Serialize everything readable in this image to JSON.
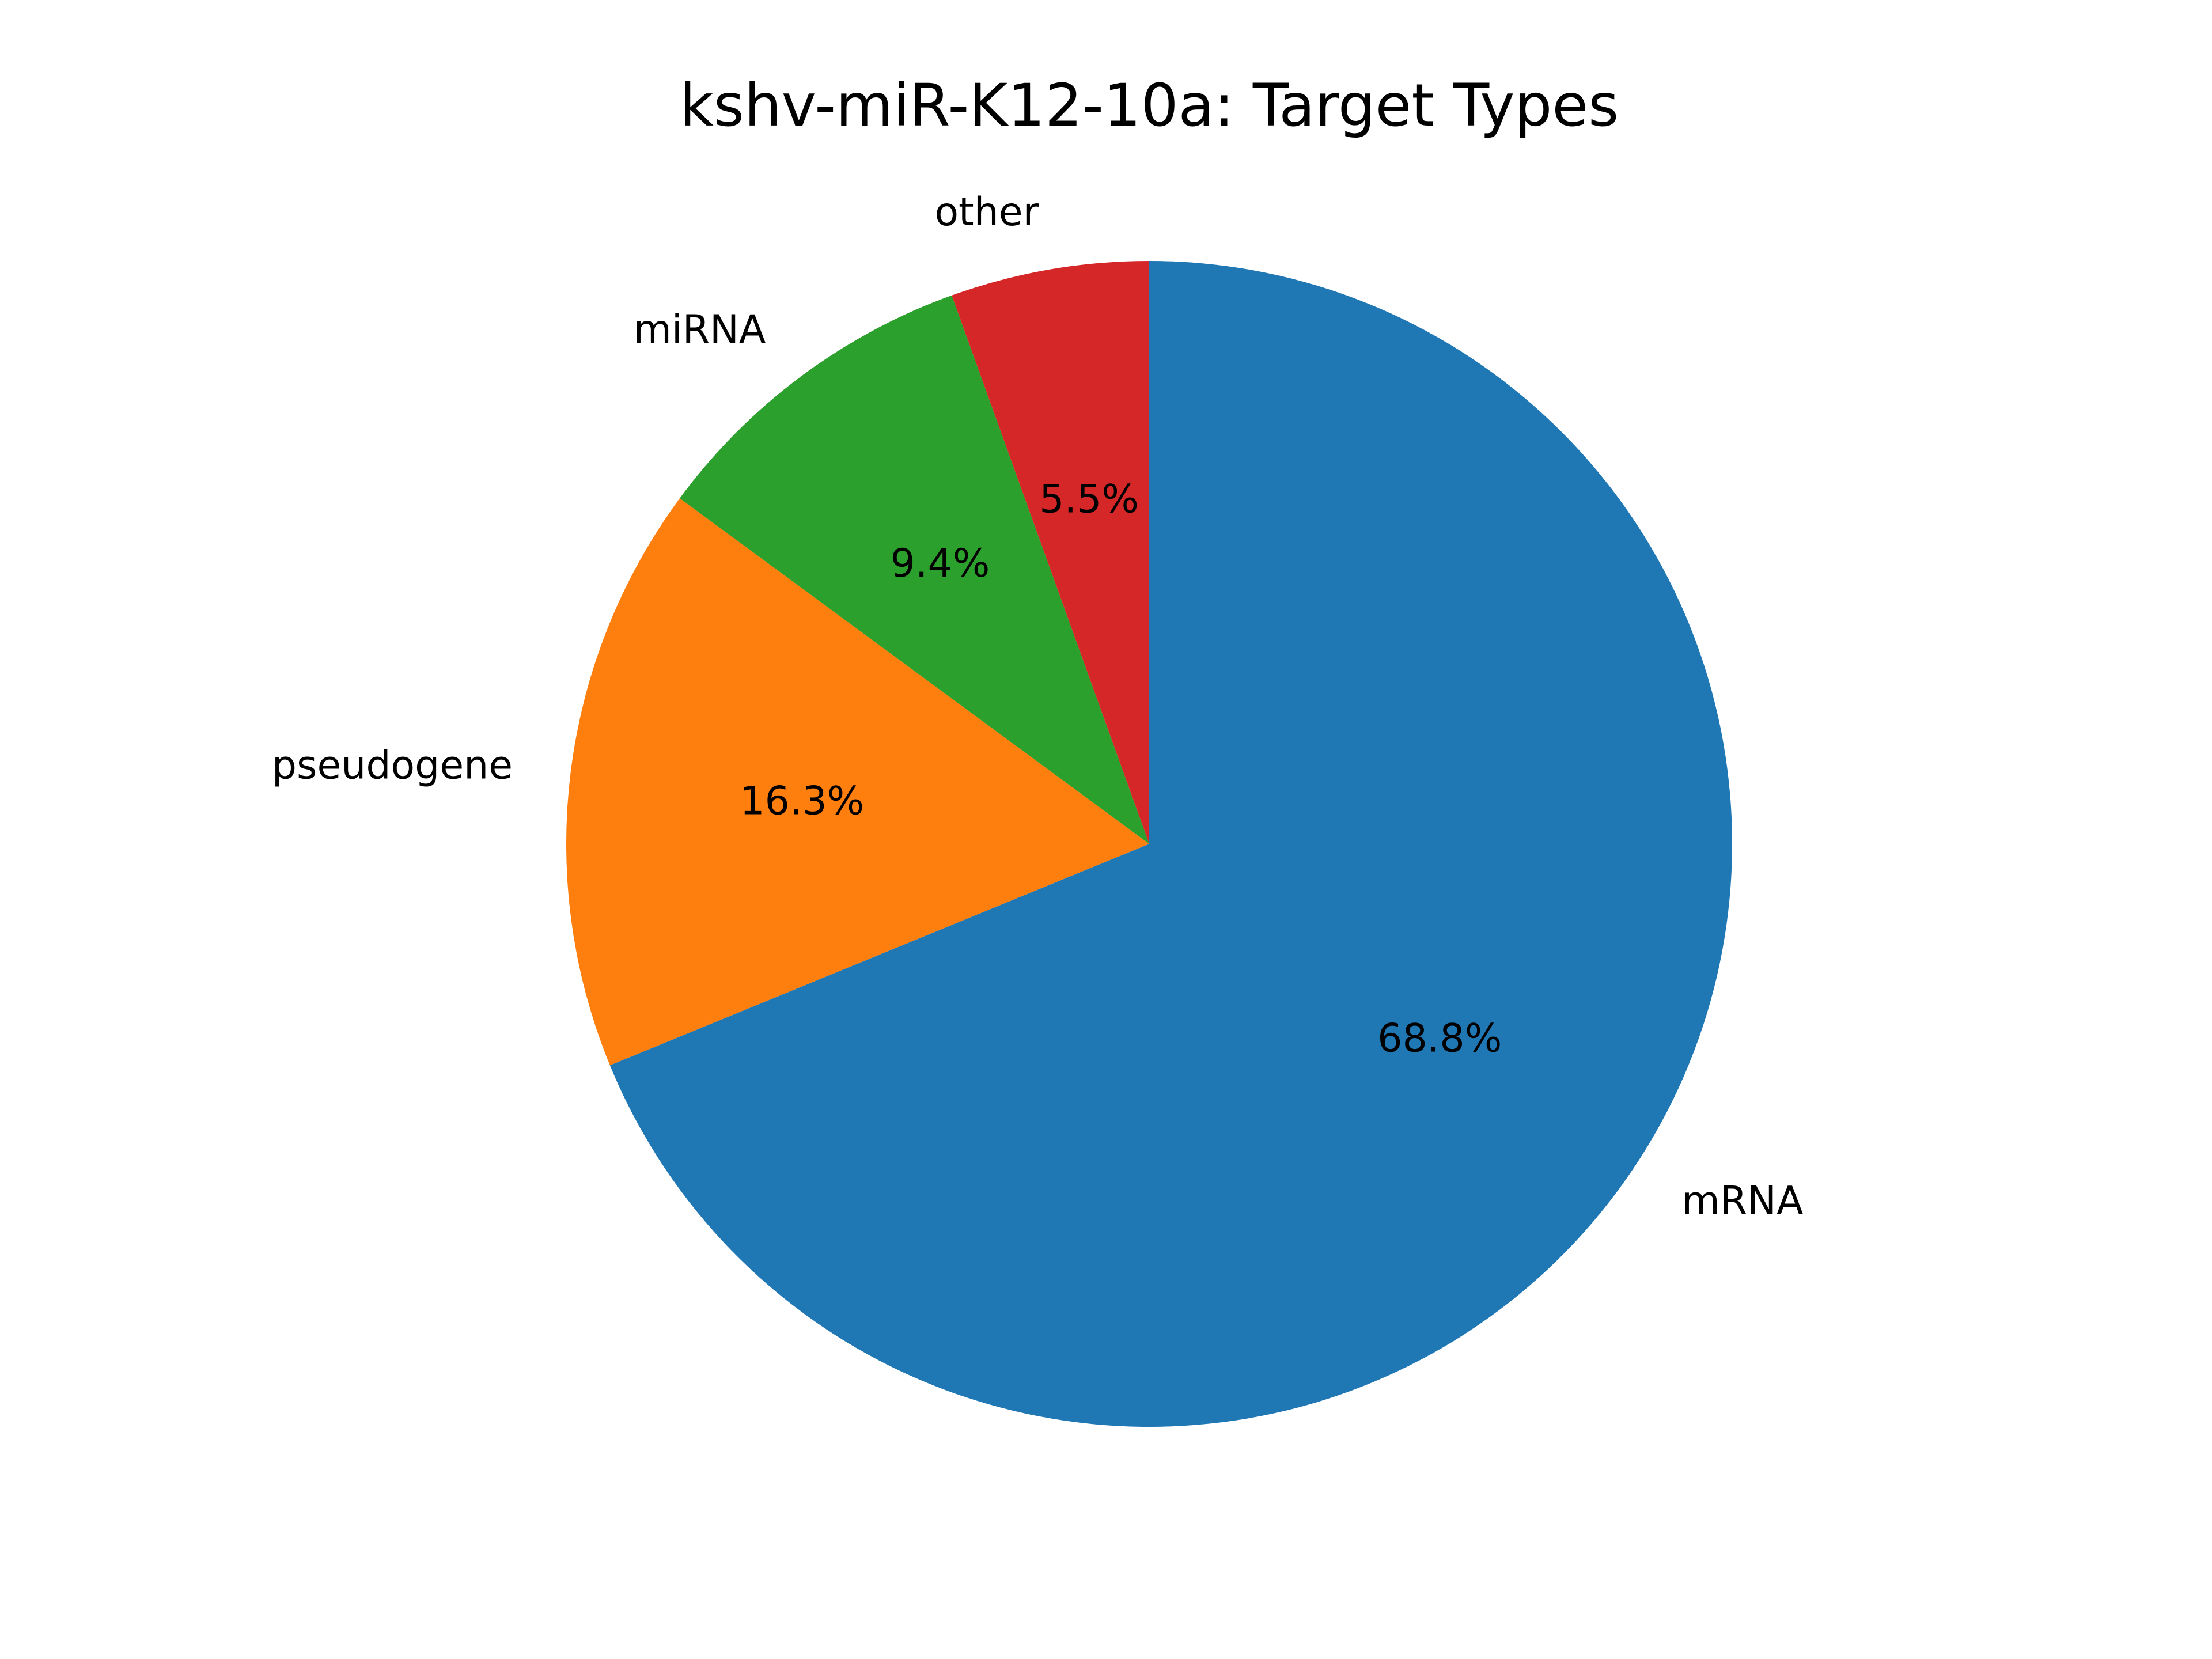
{
  "chart_data": {
    "type": "pie",
    "title": "kshv-miR-K12-10a: Target Types",
    "slices": [
      {
        "label": "mRNA",
        "value": 68.8,
        "pct_text": "68.8%",
        "color": "#1f77b4"
      },
      {
        "label": "pseudogene",
        "value": 16.3,
        "pct_text": "16.3%",
        "color": "#ff7f0e"
      },
      {
        "label": "miRNA",
        "value": 9.4,
        "pct_text": "9.4%",
        "color": "#2ca02c"
      },
      {
        "label": "other",
        "value": 5.5,
        "pct_text": "5.5%",
        "color": "#d62728"
      }
    ],
    "start": "top",
    "direction": "clockwise",
    "legend": "none"
  }
}
